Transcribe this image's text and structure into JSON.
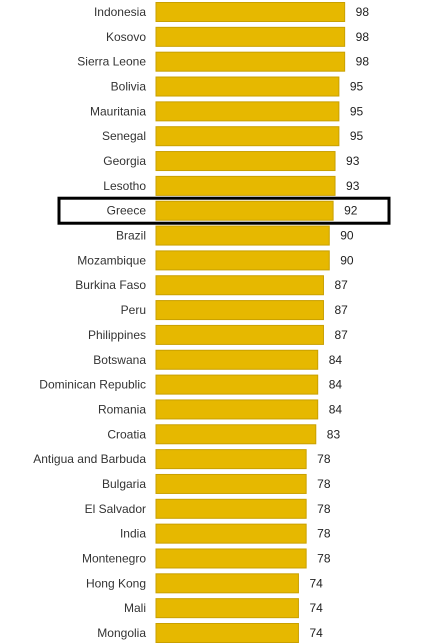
{
  "chart_data": {
    "type": "bar",
    "orientation": "horizontal",
    "categories": [
      "Indonesia",
      "Kosovo",
      "Sierra Leone",
      "Bolivia",
      "Mauritania",
      "Senegal",
      "Georgia",
      "Lesotho",
      "Greece",
      "Brazil",
      "Mozambique",
      "Burkina Faso",
      "Peru",
      "Philippines",
      "Botswana",
      "Dominican Republic",
      "Romania",
      "Croatia",
      "Antigua and Barbuda",
      "Bulgaria",
      "El Salvador",
      "India",
      "Montenegro",
      "Hong Kong",
      "Mali",
      "Mongolia"
    ],
    "values": [
      98,
      98,
      98,
      95,
      95,
      95,
      93,
      93,
      92,
      90,
      90,
      87,
      87,
      87,
      84,
      84,
      84,
      83,
      78,
      78,
      78,
      78,
      78,
      74,
      74,
      74
    ],
    "highlight": "Greece",
    "bar_color": "#e6b800",
    "bar_border_color": "#c9a000",
    "highlight_border_color": "#000000"
  }
}
